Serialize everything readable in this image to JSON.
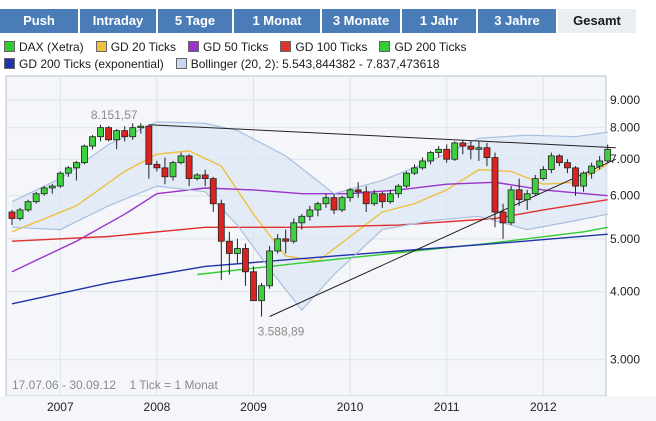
{
  "tabs": [
    {
      "label": "Push",
      "active": false
    },
    {
      "label": "Intraday",
      "active": false
    },
    {
      "label": "5 Tage",
      "active": false
    },
    {
      "label": "1 Monat",
      "active": false
    },
    {
      "label": "3 Monate",
      "active": false
    },
    {
      "label": "1 Jahr",
      "active": false
    },
    {
      "label": "3 Jahre",
      "active": false
    },
    {
      "label": "Gesamt",
      "active": true
    }
  ],
  "legend": [
    {
      "label": "DAX (Xetra)",
      "color": "#2ecc2e"
    },
    {
      "label": "GD 20 Ticks",
      "color": "#f0c040"
    },
    {
      "label": "GD 50 Ticks",
      "color": "#9933cc"
    },
    {
      "label": "GD 100 Ticks",
      "color": "#e03030"
    },
    {
      "label": "GD 200 Ticks",
      "color": "#33cc33"
    },
    {
      "label": "GD 200 Ticks (exponential)",
      "color": "#2233aa"
    },
    {
      "label": "Bollinger (20, 2): 5.543,844382 - 7.837,473618",
      "color": "#c8d8ee"
    }
  ],
  "footer": {
    "range": "17.07.06 - 30.09.12",
    "tick": "1 Tick = 1 Monat"
  },
  "chart_data": {
    "type": "candlestick",
    "y_scale": "log",
    "ylim": [
      2800,
      9500
    ],
    "yticks": [
      3000,
      4000,
      5000,
      6000,
      7000,
      8000,
      9000
    ],
    "ytick_labels": [
      "3.000",
      "4.000",
      "5.000",
      "6.000",
      "7.000",
      "8.000",
      "9.000"
    ],
    "xlim": [
      "2006-07",
      "2012-10"
    ],
    "xticks": [
      "2007",
      "2008",
      "2009",
      "2010",
      "2011",
      "2012"
    ],
    "annotations": [
      {
        "text": "8.151,57",
        "date": "2007-12",
        "value": 8151.57
      },
      {
        "text": "3.588,89",
        "date": "2009-03",
        "value": 3588.89
      }
    ],
    "candles_start": "2006-07",
    "candles": [
      [
        5600,
        5650,
        5300,
        5450
      ],
      [
        5450,
        5700,
        5400,
        5650
      ],
      [
        5650,
        5900,
        5600,
        5850
      ],
      [
        5850,
        6100,
        5800,
        6050
      ],
      [
        6050,
        6250,
        6000,
        6200
      ],
      [
        6200,
        6300,
        6050,
        6250
      ],
      [
        6250,
        6650,
        6200,
        6600
      ],
      [
        6600,
        6800,
        6500,
        6750
      ],
      [
        6750,
        6950,
        6400,
        6900
      ],
      [
        6900,
        7450,
        6850,
        7400
      ],
      [
        7400,
        7750,
        7300,
        7700
      ],
      [
        7700,
        8100,
        7550,
        8000
      ],
      [
        8000,
        8050,
        7550,
        7600
      ],
      [
        7600,
        7950,
        7300,
        7900
      ],
      [
        7900,
        8050,
        7550,
        7700
      ],
      [
        7700,
        8150,
        7600,
        8000
      ],
      [
        8000,
        8150,
        7800,
        8050
      ],
      [
        8050,
        8100,
        6450,
        6850
      ],
      [
        6850,
        6950,
        6650,
        6750
      ],
      [
        6750,
        7050,
        6300,
        6500
      ],
      [
        6500,
        6950,
        6400,
        6900
      ],
      [
        6900,
        7200,
        6850,
        7100
      ],
      [
        7100,
        7150,
        6250,
        6450
      ],
      [
        6450,
        6600,
        6400,
        6550
      ],
      [
        6550,
        6700,
        6250,
        6450
      ],
      [
        6450,
        6500,
        5600,
        5800
      ],
      [
        5800,
        5900,
        4200,
        4950
      ],
      [
        4950,
        5150,
        4300,
        4700
      ],
      [
        4700,
        5000,
        4500,
        4800
      ],
      [
        4800,
        4900,
        4100,
        4350
      ],
      [
        4350,
        4450,
        3850,
        3850
      ],
      [
        3850,
        4150,
        3600,
        4100
      ],
      [
        4100,
        4850,
        4050,
        4750
      ],
      [
        4750,
        5100,
        4700,
        5000
      ],
      [
        5000,
        5200,
        4700,
        4950
      ],
      [
        4950,
        5450,
        4900,
        5350
      ],
      [
        5350,
        5550,
        5200,
        5500
      ],
      [
        5500,
        5750,
        5400,
        5650
      ],
      [
        5650,
        5850,
        5500,
        5800
      ],
      [
        5800,
        6050,
        5700,
        5950
      ],
      [
        5950,
        6050,
        5550,
        5650
      ],
      [
        5650,
        6000,
        5600,
        5950
      ],
      [
        5950,
        6200,
        5850,
        6150
      ],
      [
        6150,
        6350,
        5950,
        6100
      ],
      [
        6100,
        6250,
        5600,
        5800
      ],
      [
        5800,
        6150,
        5750,
        6050
      ],
      [
        6050,
        6100,
        5700,
        5850
      ],
      [
        5850,
        6150,
        5800,
        6050
      ],
      [
        6050,
        6300,
        5950,
        6250
      ],
      [
        6250,
        6650,
        6200,
        6600
      ],
      [
        6600,
        6850,
        6550,
        6750
      ],
      [
        6750,
        7050,
        6700,
        6950
      ],
      [
        6950,
        7250,
        6850,
        7200
      ],
      [
        7200,
        7400,
        7050,
        7300
      ],
      [
        7300,
        7450,
        6900,
        7000
      ],
      [
        7000,
        7550,
        6950,
        7500
      ],
      [
        7500,
        7600,
        7150,
        7400
      ],
      [
        7400,
        7550,
        7000,
        7300
      ],
      [
        7300,
        7550,
        6950,
        7350
      ],
      [
        7350,
        7500,
        6800,
        7050
      ],
      [
        7050,
        7200,
        5250,
        5600
      ],
      [
        5600,
        5800,
        5000,
        5350
      ],
      [
        5350,
        6250,
        5300,
        6150
      ],
      [
        6150,
        6450,
        5750,
        5900
      ],
      [
        5900,
        6150,
        5650,
        6050
      ],
      [
        6050,
        6550,
        6000,
        6450
      ],
      [
        6450,
        6800,
        6400,
        6700
      ],
      [
        6700,
        7200,
        6600,
        7100
      ],
      [
        7100,
        7150,
        6800,
        6900
      ],
      [
        6900,
        7000,
        6600,
        6750
      ],
      [
        6750,
        6800,
        6000,
        6250
      ],
      [
        6250,
        6650,
        6100,
        6600
      ],
      [
        6600,
        6900,
        6450,
        6800
      ],
      [
        6800,
        7100,
        6700,
        6950
      ],
      [
        6950,
        7450,
        6900,
        7300
      ]
    ],
    "series": [
      {
        "name": "GD 20 Ticks",
        "color": "#f0c040",
        "x": [
          "2006-07",
          "2007-03",
          "2007-09",
          "2008-01",
          "2008-05",
          "2008-09",
          "2009-01",
          "2009-05",
          "2009-09",
          "2010-01",
          "2010-05",
          "2010-09",
          "2011-01",
          "2011-05",
          "2011-09",
          "2012-01",
          "2012-05",
          "2012-09"
        ],
        "y": [
          5150,
          5750,
          6650,
          7150,
          7250,
          6800,
          5550,
          4650,
          4550,
          5050,
          5600,
          5800,
          6150,
          6700,
          6650,
          6300,
          6350,
          6850
        ]
      },
      {
        "name": "GD 50 Ticks",
        "color": "#9933cc",
        "x": [
          "2006-07",
          "2007-03",
          "2007-09",
          "2008-01",
          "2008-07",
          "2009-01",
          "2009-07",
          "2010-01",
          "2010-07",
          "2011-01",
          "2011-07",
          "2012-01",
          "2012-09"
        ],
        "y": [
          4350,
          4950,
          5550,
          6050,
          6200,
          6150,
          6050,
          6050,
          6150,
          6300,
          6350,
          6150,
          6000
        ]
      },
      {
        "name": "GD 100 Ticks",
        "color": "#e03030",
        "x": [
          "2006-07",
          "2007-07",
          "2008-07",
          "2009-07",
          "2010-07",
          "2011-07",
          "2012-01",
          "2012-09"
        ],
        "y": [
          4950,
          5050,
          5250,
          5250,
          5300,
          5450,
          5650,
          5900
        ]
      },
      {
        "name": "GD 200 Ticks",
        "color": "#33cc33",
        "x": [
          "2008-06",
          "2009-06",
          "2010-06",
          "2011-06",
          "2012-06",
          "2012-09"
        ],
        "y": [
          4300,
          4500,
          4700,
          4900,
          5150,
          5250
        ]
      },
      {
        "name": "GD 200 Ticks (exponential)",
        "color": "#2233aa",
        "x": [
          "2006-07",
          "2007-07",
          "2008-07",
          "2009-07",
          "2010-07",
          "2011-07",
          "2012-09"
        ],
        "y": [
          3800,
          4150,
          4450,
          4600,
          4750,
          4900,
          5100
        ]
      },
      {
        "name": "Bollinger upper",
        "color": "#a8c0e0",
        "x": [
          "2006-07",
          "2007-01",
          "2007-07",
          "2008-01",
          "2008-07",
          "2008-11",
          "2009-05",
          "2009-11",
          "2010-05",
          "2010-11",
          "2011-05",
          "2011-11",
          "2012-05",
          "2012-09"
        ],
        "y": [
          5850,
          6450,
          7450,
          8200,
          8150,
          7900,
          7100,
          6050,
          6400,
          6950,
          7650,
          7750,
          7700,
          7850
        ]
      },
      {
        "name": "Bollinger lower",
        "color": "#a8c0e0",
        "x": [
          "2006-07",
          "2007-01",
          "2007-07",
          "2008-01",
          "2008-07",
          "2008-11",
          "2009-03",
          "2009-07",
          "2009-11",
          "2010-05",
          "2010-11",
          "2011-05",
          "2011-11",
          "2012-05",
          "2012-09"
        ],
        "y": [
          5250,
          5200,
          5750,
          6250,
          6100,
          5300,
          4400,
          3700,
          4300,
          5200,
          5400,
          5500,
          5200,
          5400,
          5550
        ]
      },
      {
        "name": "Trend line upper",
        "color": "#222222",
        "x": [
          "2007-12",
          "2012-10"
        ],
        "y": [
          8100,
          7350
        ]
      },
      {
        "name": "Trend line lower",
        "color": "#222222",
        "x": [
          "2009-03",
          "2012-10"
        ],
        "y": [
          3600,
          7000
        ]
      }
    ]
  }
}
